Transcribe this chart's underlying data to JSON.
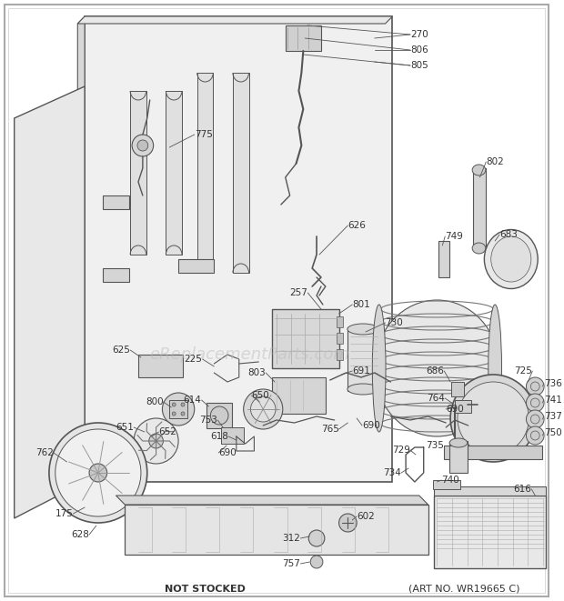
{
  "bg_color": "#ffffff",
  "line_color": "#555555",
  "fill_light": "#f0f0f0",
  "fill_mid": "#e0e0e0",
  "fill_dark": "#c8c8c8",
  "text_color": "#333333",
  "watermark": "eReplacementParts.com",
  "watermark_color": "#bbbbbb",
  "footer_left": "NOT STOCKED",
  "footer_right": "(ART NO. WR19665 C)",
  "fig_width": 6.2,
  "fig_height": 6.61,
  "dpi": 100
}
